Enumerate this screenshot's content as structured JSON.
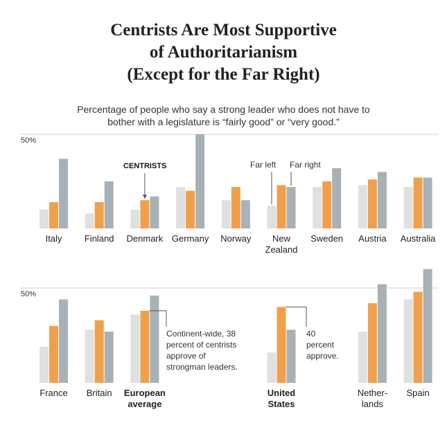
{
  "title": "Centrists Are Most Supportive\nof Authoritarianism\n(Except for the Far Right)",
  "subtitle": "Percentage of people who say a strong leader who does not have to\nbother with a legislature is “fairly good” or “very good.”",
  "chart_data": [
    {
      "type": "bar",
      "categories": [
        "Italy",
        "Finland",
        "Denmark",
        "Germany",
        "Norway",
        "New\nZealand",
        "Sweden",
        "Austria",
        "Australia"
      ],
      "series": [
        {
          "name": "Far left",
          "color": "#e0e0e0",
          "values": [
            10,
            8,
            10,
            22,
            15,
            12,
            22,
            23,
            22
          ]
        },
        {
          "name": "CENTRISTS",
          "color": "#f0a04b",
          "values": [
            14,
            14,
            15,
            20,
            22,
            23,
            25,
            26,
            27
          ]
        },
        {
          "name": "Far right",
          "color": "#a7b1b6",
          "values": [
            37,
            25,
            17,
            50,
            15,
            22,
            32,
            30,
            27
          ]
        }
      ],
      "ylim": [
        0,
        50
      ],
      "yticks": [
        {
          "value": 50,
          "label": "50%"
        }
      ],
      "grid": true
    },
    {
      "type": "bar",
      "categories": [
        "France",
        "Britain",
        "European\naverage",
        "United\nStates",
        "Nether-\nlands",
        "Spain"
      ],
      "bold_category_indices": [
        2,
        3
      ],
      "series": [
        {
          "color": "#e0e0e0",
          "values": [
            19,
            28,
            36,
            16,
            27,
            44
          ]
        },
        {
          "color": "#f0a04b",
          "values": [
            30,
            33,
            38,
            40,
            42,
            48
          ]
        },
        {
          "color": "#a7b1b6",
          "values": [
            44,
            27,
            46,
            28,
            52,
            60
          ]
        }
      ],
      "annotations": [
        "Continent-wide, 38\npercent of centrists\napprove of\nstrongman leaders.",
        "40\npercent\napprove."
      ],
      "ylim": [
        0,
        62
      ],
      "yticks": [
        {
          "value": 50,
          "label": "50%"
        }
      ],
      "grid": true
    }
  ]
}
